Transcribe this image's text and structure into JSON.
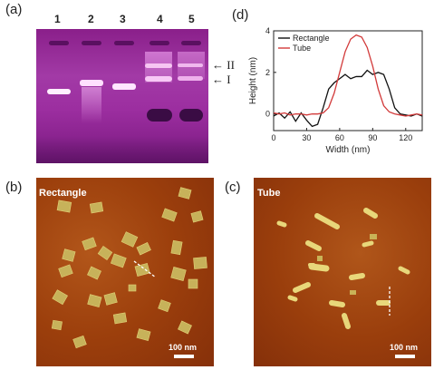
{
  "panels": {
    "a": {
      "label": "(a)",
      "lanes": [
        "1",
        "2",
        "3",
        "4",
        "5"
      ],
      "bands": [
        {
          "label": "← II"
        },
        {
          "label": "← I"
        }
      ]
    },
    "b": {
      "label": "(b)",
      "title": "Rectangle",
      "scale": "100 nm"
    },
    "c": {
      "label": "(c)",
      "title": "Tube",
      "scale": "100 nm"
    },
    "d": {
      "label": "(d)"
    }
  },
  "chart_data": {
    "type": "line",
    "xlabel": "Width (nm)",
    "ylabel": "Height (nm)",
    "xlim": [
      0,
      135
    ],
    "ylim": [
      -0.8,
      4
    ],
    "xticks": [
      0,
      30,
      60,
      90,
      120
    ],
    "yticks": [
      0,
      2,
      4
    ],
    "legend": "top-left",
    "series": [
      {
        "name": "Rectangle",
        "color": "#111111",
        "x": [
          0,
          5,
          10,
          15,
          20,
          25,
          30,
          35,
          40,
          45,
          50,
          55,
          60,
          65,
          70,
          75,
          80,
          85,
          90,
          95,
          100,
          105,
          110,
          115,
          120,
          125,
          130,
          135
        ],
        "y": [
          -0.1,
          0.05,
          -0.2,
          0.1,
          -0.35,
          0.05,
          -0.3,
          -0.6,
          -0.5,
          0.3,
          1.2,
          1.5,
          1.7,
          1.9,
          1.7,
          1.8,
          1.8,
          2.1,
          1.9,
          2.0,
          1.9,
          1.2,
          0.3,
          0.0,
          -0.05,
          -0.1,
          0.0,
          -0.1
        ]
      },
      {
        "name": "Tube",
        "color": "#d23a3a",
        "x": [
          0,
          5,
          10,
          15,
          20,
          25,
          30,
          35,
          40,
          45,
          50,
          55,
          60,
          65,
          70,
          75,
          80,
          85,
          90,
          95,
          100,
          105,
          110,
          115,
          120,
          125,
          130,
          135
        ],
        "y": [
          0.05,
          0.0,
          0.05,
          -0.05,
          0.0,
          0.0,
          -0.05,
          0.0,
          0.0,
          0.05,
          0.3,
          1.0,
          2.0,
          3.0,
          3.6,
          3.8,
          3.7,
          3.2,
          2.3,
          1.2,
          0.4,
          0.1,
          0.0,
          -0.05,
          -0.1,
          -0.05,
          0.0,
          -0.05
        ]
      }
    ]
  }
}
